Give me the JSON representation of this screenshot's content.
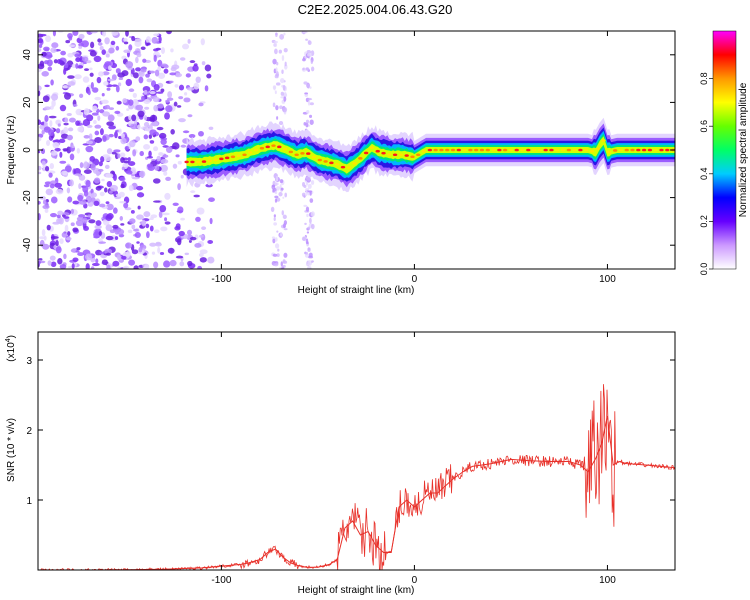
{
  "title": "C2E2.2025.004.06.43.G20",
  "chart_data": [
    {
      "type": "heatmap",
      "xlabel": "Height of straight line (km)",
      "ylabel": "Frequency (Hz)",
      "xlim": [
        -195,
        135
      ],
      "ylim": [
        -50,
        50
      ],
      "xticks": [
        -100,
        0,
        100
      ],
      "yticks": [
        -40,
        -20,
        0,
        20,
        40
      ],
      "colorbar": {
        "label": "Normalized spectral amplitude",
        "range": [
          0,
          1
        ],
        "ticks": [
          "0.0",
          "0.2",
          "0.4",
          "0.6",
          "0.8"
        ],
        "colormap": [
          "#ffffff",
          "#cc99ff",
          "#6600ff",
          "#0000ff",
          "#00ccff",
          "#00ff66",
          "#66ff00",
          "#ffff00",
          "#ff9900",
          "#ff0000",
          "#ff00ff"
        ]
      },
      "noise_region_x": [
        -195,
        -105
      ],
      "ridge": {
        "x": [
          -118,
          -110,
          -102,
          -95,
          -88,
          -82,
          -78,
          -72,
          -66,
          -61,
          -56,
          -50,
          -45,
          -40,
          -35,
          -30,
          -26,
          -22,
          -18,
          -12,
          -6,
          0,
          6,
          15,
          30,
          50,
          70,
          90,
          94,
          96,
          98,
          100,
          105,
          120,
          135
        ],
        "y": [
          -5,
          -5,
          -4,
          -3,
          -2,
          0,
          1,
          2,
          0,
          -2,
          -1,
          -4,
          -5,
          -6,
          -8,
          -5,
          -2,
          1,
          -1,
          -2,
          -2,
          -3,
          0,
          0,
          0,
          0,
          0,
          0,
          -1,
          2,
          4,
          -1,
          0,
          0,
          0
        ]
      }
    },
    {
      "type": "line",
      "xlabel": "Height of straight line (km)",
      "ylabel": "SNR (10 * v/v)",
      "yscale_label": "(x10",
      "yscale_exp": "4",
      "xlim": [
        -195,
        135
      ],
      "ylim": [
        0,
        3.4
      ],
      "xticks": [
        -100,
        0,
        100
      ],
      "yticks": [
        1,
        2,
        3
      ],
      "color": "#e8312a",
      "x": [
        -195,
        -160,
        -130,
        -110,
        -90,
        -86,
        -80,
        -76,
        -72,
        -68,
        -64,
        -60,
        -56,
        -50,
        -44,
        -40,
        -36,
        -32,
        -28,
        -24,
        -20,
        -16,
        -12,
        -8,
        -4,
        0,
        4,
        8,
        12,
        16,
        20,
        25,
        30,
        40,
        50,
        60,
        70,
        80,
        86,
        90,
        94,
        97,
        100,
        103,
        106,
        110,
        120,
        135
      ],
      "y": [
        0.0,
        0.0,
        0.01,
        0.03,
        0.08,
        0.1,
        0.15,
        0.25,
        0.3,
        0.18,
        0.1,
        0.06,
        0.04,
        0.04,
        0.08,
        0.15,
        0.6,
        0.7,
        0.5,
        0.55,
        0.35,
        0.25,
        0.25,
        0.9,
        1.0,
        0.9,
        1.0,
        1.1,
        1.1,
        1.2,
        1.3,
        1.4,
        1.48,
        1.52,
        1.58,
        1.56,
        1.55,
        1.55,
        1.5,
        1.4,
        1.6,
        1.8,
        2.2,
        1.5,
        1.55,
        1.52,
        1.5,
        1.46
      ]
    }
  ]
}
